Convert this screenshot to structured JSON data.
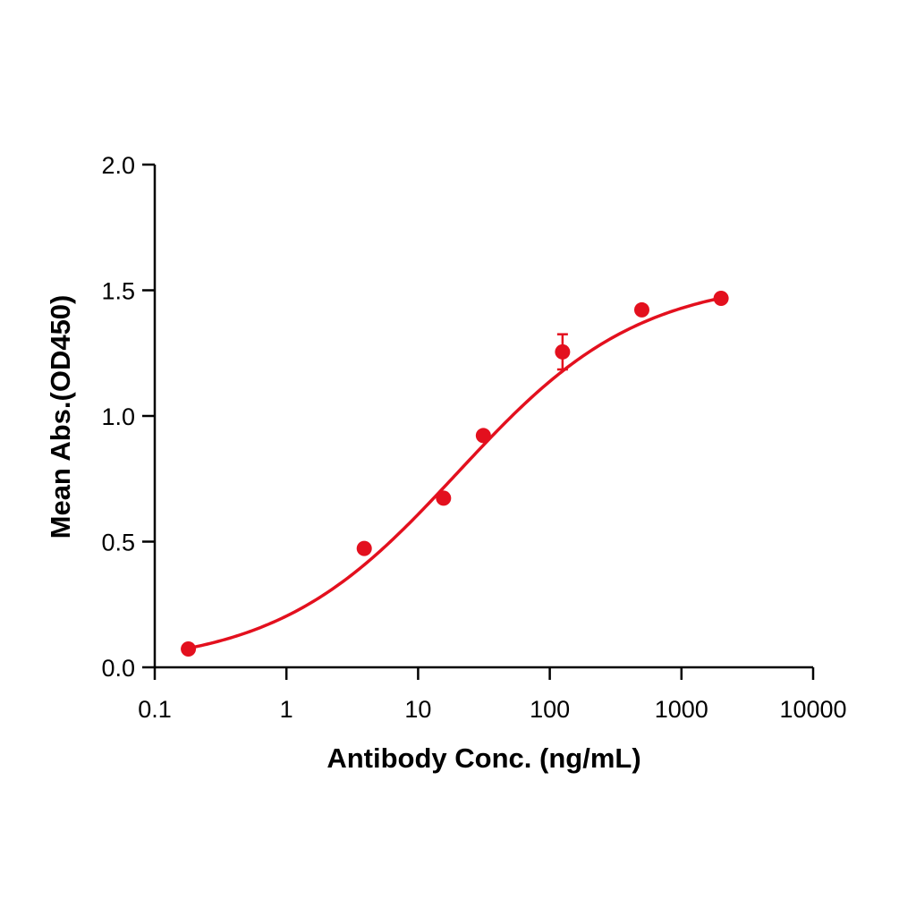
{
  "chart_data": {
    "type": "scatter",
    "title": "",
    "xlabel": "Antibody Conc. (ng/mL)",
    "ylabel": "Mean Abs.(OD450)",
    "x_scale": "log",
    "xlim": [
      0.1,
      10000
    ],
    "ylim": [
      0,
      2.0
    ],
    "x_ticks": [
      0.1,
      1,
      10,
      100,
      1000,
      10000
    ],
    "x_tick_labels": [
      "0.1",
      "1",
      "10",
      "100",
      "1000",
      "10000"
    ],
    "y_ticks": [
      0,
      0.5,
      1.0,
      1.5,
      2.0
    ],
    "y_tick_labels": [
      "0.0",
      "0.5",
      "1.0",
      "1.5",
      "2.0"
    ],
    "grid": false,
    "legend": "none",
    "color": "#e3101e",
    "series": [
      {
        "x": [
          0.18,
          3.9,
          15.6,
          31.3,
          125,
          500,
          2000
        ],
        "y": [
          0.073,
          0.473,
          0.673,
          0.922,
          1.255,
          1.422,
          1.468
        ],
        "error": [
          0,
          0,
          0,
          0,
          0.07,
          0,
          0
        ]
      }
    ],
    "fit": {
      "model": "4PL",
      "x_range": [
        0.18,
        2000
      ],
      "bottom": 0.0,
      "top": 1.55,
      "ec50": 20,
      "hill": 0.63
    }
  }
}
